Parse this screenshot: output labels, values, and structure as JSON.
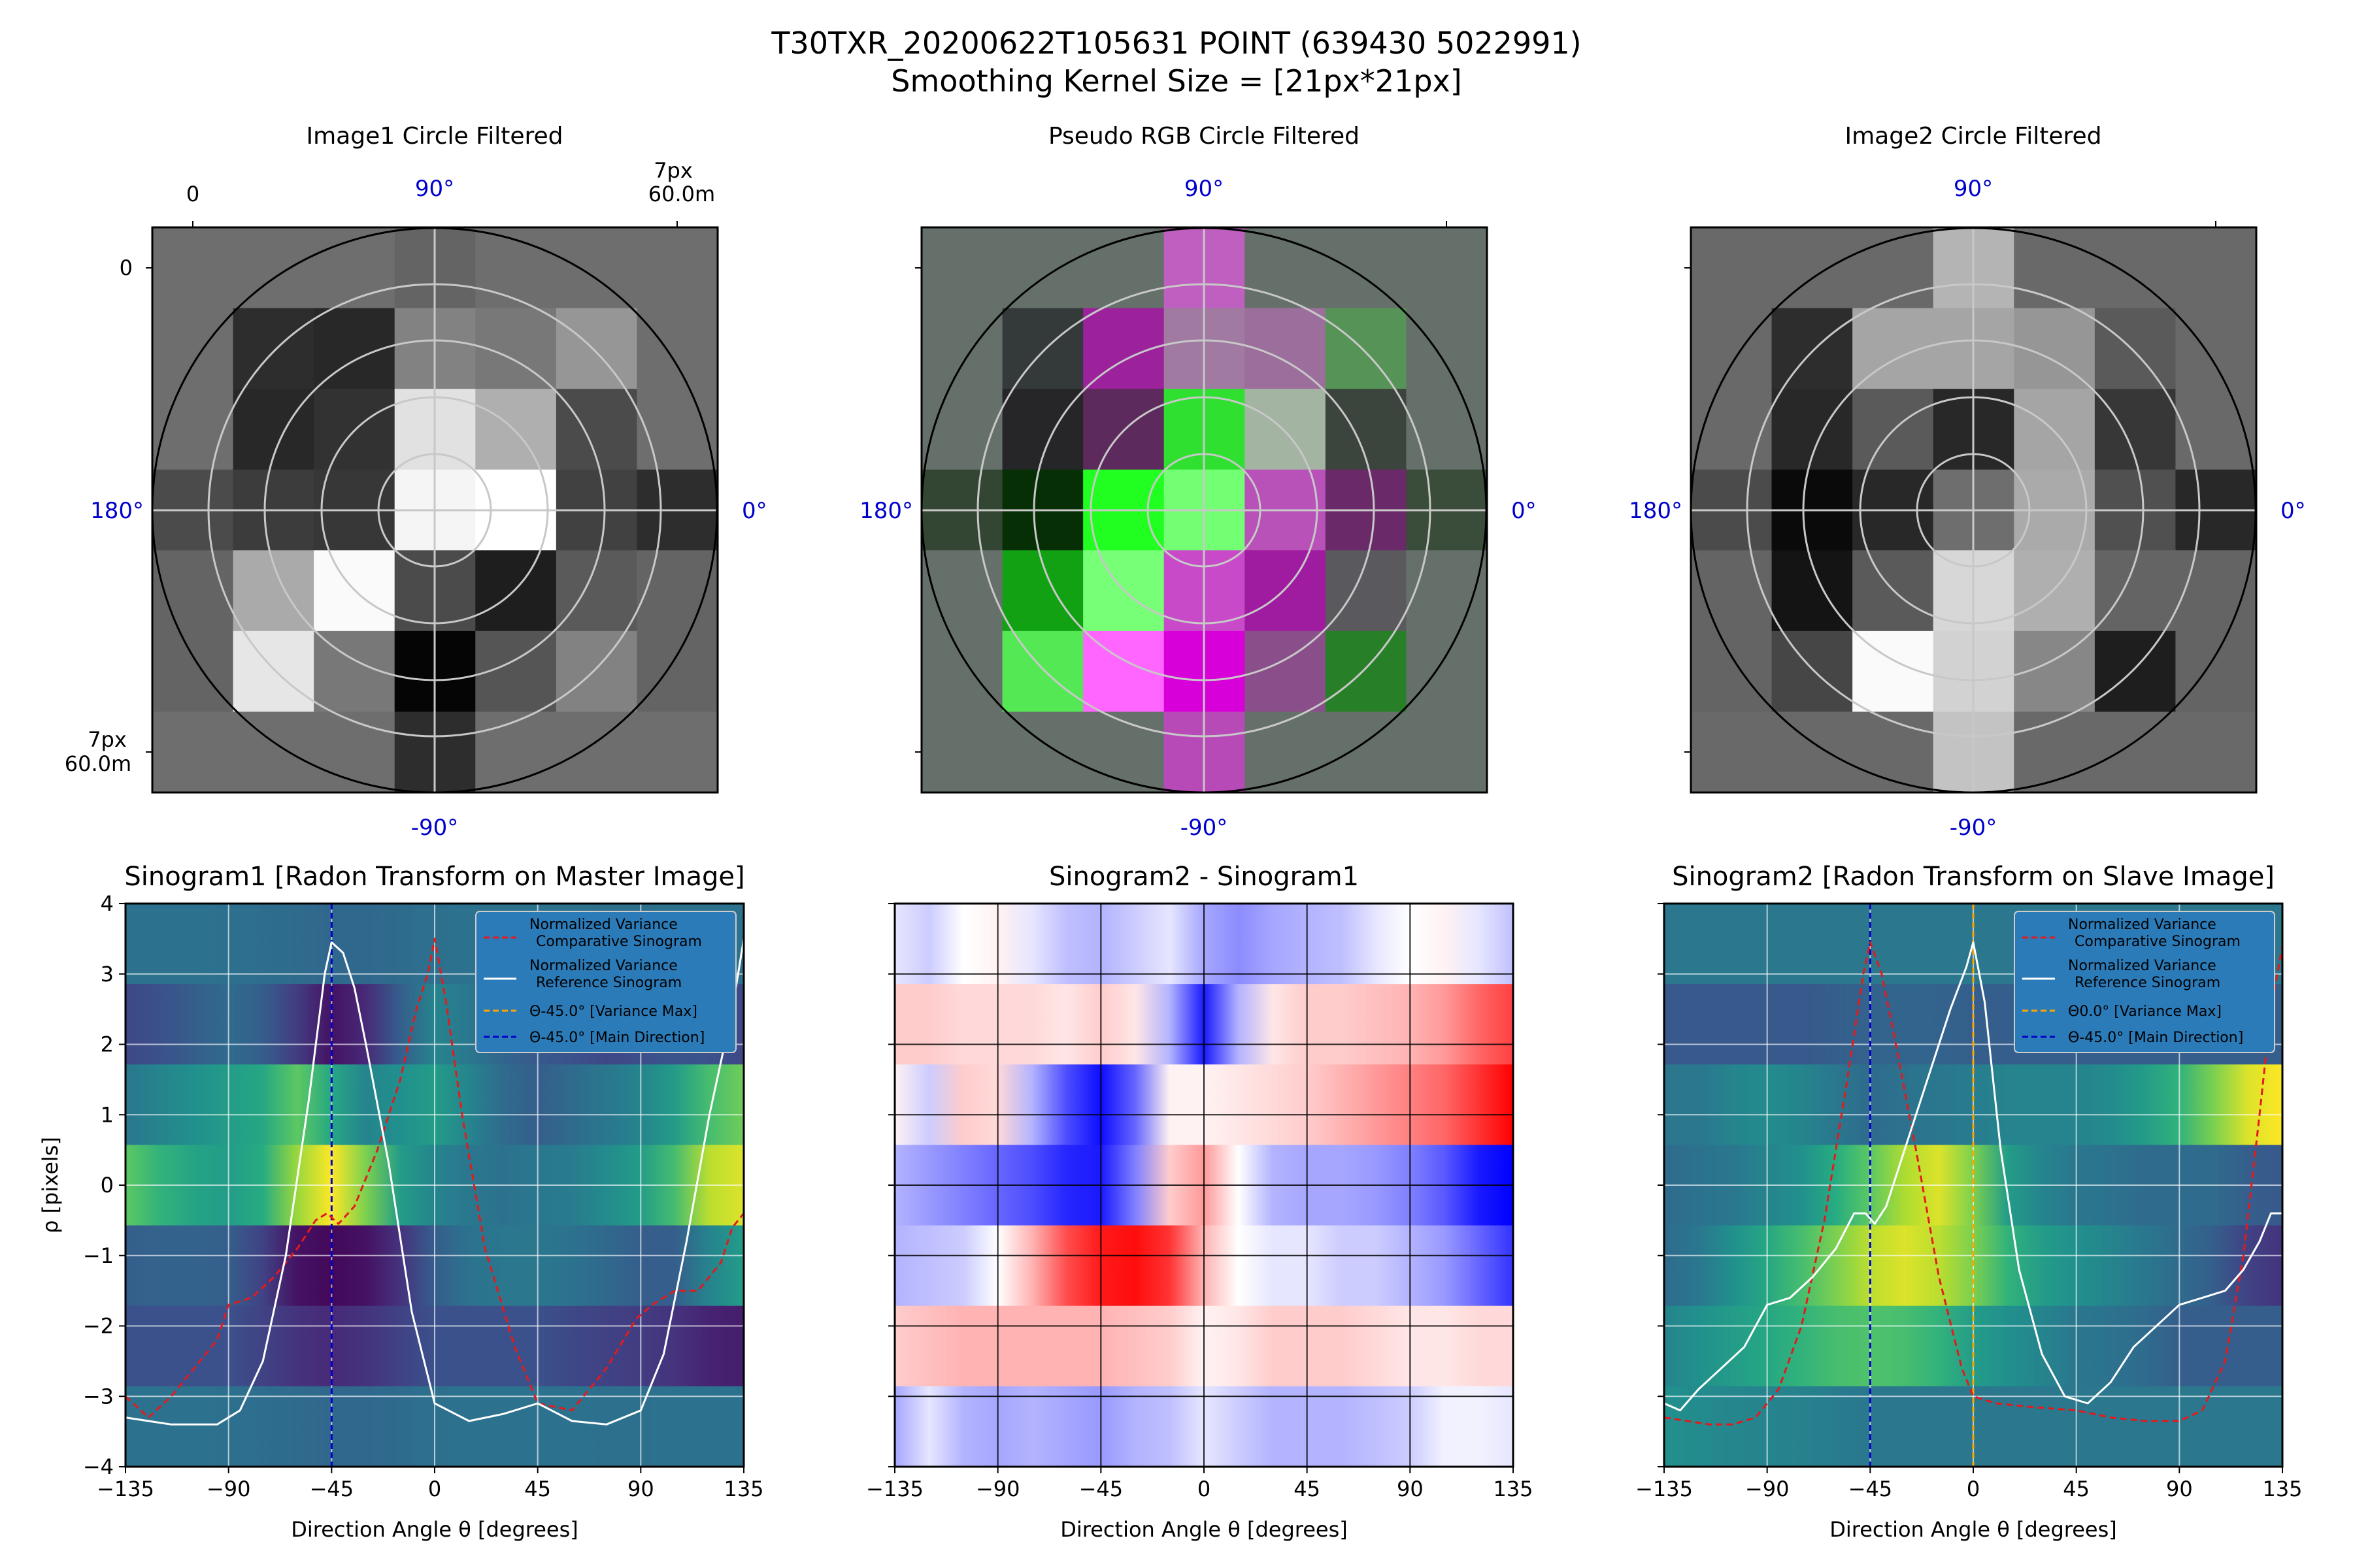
{
  "figure": {
    "title_line1": "T30TXR_20200622T105631 POINT (639430 5022991)",
    "title_line2": "Smoothing Kernel Size = [21px*21px]"
  },
  "colors": {
    "compare_curve": "#e41a1c",
    "reference_curve": "#ffffff",
    "variance_max_line": "#ffa500",
    "main_direction_line": "#0000cc",
    "legend_bg": "#2b7bb9",
    "angle_label": "#0000cc"
  },
  "polar": {
    "angle_labels": {
      "north": "90°",
      "west": "180°",
      "east": "0°",
      "south": "-90°"
    },
    "scale_top_left": "0",
    "scale_top_right_line1": "7px",
    "scale_top_right_line2": "60.0m",
    "scale_left_top": "0",
    "scale_left_bottom_line1": "7px",
    "scale_left_bottom_line2": "60.0m",
    "panels": [
      {
        "title": "Image1 Circle Filtered",
        "grid": [
          [
            110,
            110,
            110,
            100,
            110,
            110,
            110
          ],
          [
            110,
            45,
            40,
            130,
            120,
            150,
            110
          ],
          [
            110,
            40,
            50,
            225,
            175,
            75,
            110
          ],
          [
            75,
            60,
            55,
            245,
            255,
            65,
            45
          ],
          [
            100,
            170,
            250,
            75,
            30,
            90,
            100
          ],
          [
            100,
            230,
            120,
            5,
            85,
            130,
            100
          ],
          [
            110,
            110,
            110,
            45,
            110,
            110,
            110
          ]
        ]
      },
      {
        "title": "Pseudo RGB Circle Filtered",
        "grid": [
          [
            "#66706a",
            "#66706a",
            "#66706a",
            "#bf5fbf",
            "#66706a",
            "#66706a",
            "#66706a"
          ],
          [
            "#66706a",
            "#34393a",
            "#9b229b",
            "#a07aa0",
            "#9c6e9c",
            "#569356",
            "#66706a"
          ],
          [
            "#66706a",
            "#262629",
            "#5c2a5c",
            "#30e030",
            "#a3b4a3",
            "#3c443e",
            "#66706a"
          ],
          [
            "#334633",
            "#062f06",
            "#20ff20",
            "#73ff73",
            "#b852b8",
            "#6a2a6a",
            "#3a4d3a"
          ],
          [
            "#66706a",
            "#12a112",
            "#77ff77",
            "#c84ac8",
            "#9f1b9f",
            "#5a5a5e",
            "#66706a"
          ],
          [
            "#66706a",
            "#55e855",
            "#ff66ff",
            "#d800d8",
            "#8a4f8a",
            "#277f27",
            "#66706a"
          ],
          [
            "#66706a",
            "#66706a",
            "#66706a",
            "#b84ab8",
            "#66706a",
            "#66706a",
            "#66706a"
          ]
        ]
      },
      {
        "title": "Image2 Circle Filtered",
        "grid": [
          [
            105,
            105,
            105,
            180,
            105,
            105,
            105
          ],
          [
            105,
            45,
            165,
            165,
            150,
            90,
            105
          ],
          [
            105,
            40,
            90,
            40,
            165,
            55,
            105
          ],
          [
            75,
            10,
            40,
            110,
            170,
            80,
            40
          ],
          [
            100,
            20,
            90,
            215,
            175,
            100,
            100
          ],
          [
            100,
            70,
            250,
            210,
            135,
            30,
            100
          ],
          [
            105,
            105,
            105,
            195,
            105,
            105,
            105
          ]
        ]
      }
    ]
  },
  "sinograms": {
    "ylabel": "ρ [pixels]",
    "xlabel": "Direction Angle θ [degrees]",
    "x_ticks": [
      "−135",
      "−90",
      "−45",
      "0",
      "45",
      "90",
      "135"
    ],
    "y_ticks": [
      "4",
      "3",
      "2",
      "1",
      "0",
      "−1",
      "−2",
      "−3",
      "−4"
    ],
    "panels": [
      {
        "title": "Sinogram1 [Radon Transform on Master Image]"
      },
      {
        "title": "Sinogram2 - Sinogram1"
      },
      {
        "title": "Sinogram2 [Radon Transform on Slave Image]"
      }
    ],
    "legends": [
      {
        "compare_line1": "Normalized Variance",
        "compare_line2": "Comparative Sinogram",
        "reference_line1": "Normalized Variance",
        "reference_line2": "Reference Sinogram",
        "variance_max": "Θ-45.0° [Variance Max]",
        "main_direction": "Θ-45.0° [Main Direction]"
      },
      {
        "compare_line1": "Normalized Variance",
        "compare_line2": "Comparative Sinogram",
        "reference_line1": "Normalized Variance",
        "reference_line2": "Reference Sinogram",
        "variance_max": "Θ0.0° [Variance Max]",
        "main_direction": "Θ-45.0° [Main Direction]"
      }
    ]
  },
  "chart_data": [
    {
      "type": "heatmap",
      "title": "Sinogram1 [Radon Transform on Master Image]",
      "xlabel": "Direction Angle θ [degrees]",
      "ylabel": "ρ [pixels]",
      "xlim": [
        -135,
        135
      ],
      "ylim": [
        -4,
        4
      ],
      "colormap": "viridis",
      "rho_bands": [
        3.4,
        2.3,
        1.1,
        0.0,
        -1.1,
        -2.3,
        -3.4
      ],
      "theta_nodes": [
        -135,
        -120,
        -105,
        -90,
        -75,
        -60,
        -45,
        -30,
        -15,
        0,
        15,
        30,
        45,
        60,
        75,
        90,
        105,
        120,
        135
      ],
      "rows": [
        [
          0.38,
          0.38,
          0.38,
          0.37,
          0.36,
          0.35,
          0.34,
          0.34,
          0.35,
          0.37,
          0.38,
          0.38,
          0.38,
          0.38,
          0.37,
          0.37,
          0.38,
          0.38,
          0.38
        ],
        [
          0.22,
          0.25,
          0.3,
          0.35,
          0.3,
          0.18,
          0.05,
          0.12,
          0.3,
          0.45,
          0.4,
          0.33,
          0.28,
          0.25,
          0.22,
          0.24,
          0.26,
          0.25,
          0.22
        ],
        [
          0.4,
          0.45,
          0.5,
          0.55,
          0.6,
          0.75,
          0.6,
          0.45,
          0.5,
          0.55,
          0.45,
          0.35,
          0.3,
          0.35,
          0.4,
          0.45,
          0.55,
          0.7,
          0.78
        ],
        [
          0.75,
          0.65,
          0.58,
          0.55,
          0.62,
          0.85,
          1.0,
          0.8,
          0.55,
          0.45,
          0.4,
          0.38,
          0.4,
          0.42,
          0.48,
          0.55,
          0.7,
          0.9,
          0.95
        ],
        [
          0.3,
          0.32,
          0.32,
          0.3,
          0.2,
          0.05,
          0.02,
          0.05,
          0.15,
          0.3,
          0.38,
          0.4,
          0.4,
          0.38,
          0.34,
          0.3,
          0.3,
          0.45,
          0.55
        ],
        [
          0.25,
          0.25,
          0.25,
          0.25,
          0.2,
          0.15,
          0.12,
          0.15,
          0.2,
          0.25,
          0.25,
          0.25,
          0.25,
          0.22,
          0.2,
          0.18,
          0.15,
          0.1,
          0.08
        ],
        [
          0.38,
          0.38,
          0.38,
          0.37,
          0.36,
          0.35,
          0.34,
          0.34,
          0.35,
          0.37,
          0.38,
          0.38,
          0.38,
          0.38,
          0.37,
          0.37,
          0.38,
          0.38,
          0.38
        ]
      ],
      "series": [
        {
          "name": "Normalized Variance Comparative Sinogram",
          "style": "red-dashed",
          "x": [
            -135,
            -125,
            -115,
            -105,
            -95,
            -90,
            -80,
            -70,
            -60,
            -52,
            -47,
            -42,
            -35,
            -25,
            -15,
            -8,
            -3,
            0,
            5,
            12,
            22,
            35,
            45,
            60,
            75,
            88,
            95,
            105,
            115,
            125,
            130,
            135
          ],
          "y": [
            -3.0,
            -3.3,
            -3.0,
            -2.6,
            -2.2,
            -1.7,
            -1.6,
            -1.3,
            -0.9,
            -0.5,
            -0.4,
            -0.55,
            -0.3,
            0.5,
            1.5,
            2.5,
            3.0,
            3.5,
            2.6,
            1.0,
            -0.9,
            -2.3,
            -3.1,
            -3.2,
            -2.6,
            -1.9,
            -1.7,
            -1.5,
            -1.5,
            -1.1,
            -0.6,
            -0.4
          ]
        },
        {
          "name": "Normalized Variance Reference Sinogram",
          "style": "white-solid",
          "x": [
            -135,
            -125,
            -115,
            -105,
            -95,
            -85,
            -75,
            -65,
            -55,
            -48,
            -45,
            -40,
            -35,
            -30,
            -20,
            -10,
            0,
            15,
            30,
            45,
            60,
            75,
            90,
            100,
            110,
            120,
            130,
            135
          ],
          "y": [
            -3.3,
            -3.35,
            -3.4,
            -3.4,
            -3.4,
            -3.2,
            -2.5,
            -1.0,
            1.2,
            3.0,
            3.45,
            3.3,
            2.8,
            2.0,
            0.3,
            -1.8,
            -3.1,
            -3.35,
            -3.25,
            -3.1,
            -3.35,
            -3.4,
            -3.2,
            -2.4,
            -0.8,
            1.0,
            2.5,
            3.5
          ]
        }
      ],
      "vlines": [
        {
          "x": -45,
          "name": "Θ-45.0° [Main Direction]",
          "style": "blue-dashed"
        }
      ]
    },
    {
      "type": "heatmap",
      "title": "Sinogram2 - Sinogram1",
      "xlabel": "Direction Angle θ [degrees]",
      "xlim": [
        -135,
        135
      ],
      "ylim": [
        -4,
        4
      ],
      "colormap": "bwr",
      "rho_bands": [
        3.4,
        2.3,
        1.1,
        0.0,
        -1.1,
        -2.3,
        -3.4
      ],
      "theta_nodes": [
        -135,
        -120,
        -105,
        -90,
        -75,
        -60,
        -45,
        -30,
        -15,
        0,
        15,
        30,
        45,
        60,
        75,
        90,
        105,
        120,
        135
      ],
      "rows": [
        [
          -0.1,
          -0.2,
          0.0,
          0.05,
          -0.1,
          -0.25,
          -0.3,
          -0.2,
          -0.1,
          -0.35,
          -0.45,
          -0.35,
          -0.3,
          -0.25,
          -0.1,
          0.0,
          0.05,
          -0.1,
          -0.25
        ],
        [
          0.2,
          0.2,
          0.15,
          0.15,
          0.15,
          0.1,
          0.2,
          0.1,
          -0.3,
          -0.9,
          -0.3,
          0.1,
          0.2,
          0.2,
          0.25,
          0.3,
          0.4,
          0.6,
          0.75
        ],
        [
          0.05,
          -0.2,
          0.2,
          0.15,
          -0.3,
          -0.7,
          -0.95,
          -0.6,
          0.05,
          0.05,
          0.1,
          0.15,
          0.2,
          0.3,
          0.4,
          0.5,
          0.6,
          0.8,
          1.0
        ],
        [
          -0.3,
          -0.4,
          -0.5,
          -0.6,
          -0.7,
          -0.85,
          -0.9,
          -0.5,
          0.2,
          0.4,
          0.0,
          -0.3,
          -0.35,
          -0.35,
          -0.4,
          -0.5,
          -0.65,
          -0.9,
          -1.0
        ],
        [
          -0.3,
          -0.25,
          -0.2,
          0.0,
          0.3,
          0.7,
          0.9,
          0.95,
          0.8,
          0.3,
          0.0,
          -0.1,
          -0.1,
          -0.2,
          -0.2,
          -0.3,
          -0.4,
          -0.6,
          -0.8
        ],
        [
          0.2,
          0.25,
          0.3,
          0.3,
          0.3,
          0.3,
          0.3,
          0.25,
          0.2,
          0.05,
          0.1,
          0.2,
          0.2,
          0.2,
          0.15,
          0.1,
          0.1,
          0.15,
          0.15
        ],
        [
          -0.35,
          -0.1,
          -0.3,
          -0.35,
          -0.3,
          -0.35,
          -0.4,
          -0.3,
          -0.25,
          -0.1,
          -0.2,
          -0.3,
          -0.3,
          -0.3,
          -0.25,
          -0.2,
          -0.05,
          -0.05,
          -0.1
        ]
      ]
    },
    {
      "type": "heatmap",
      "title": "Sinogram2 [Radon Transform on Slave Image]",
      "xlabel": "Direction Angle θ [degrees]",
      "xlim": [
        -135,
        135
      ],
      "ylim": [
        -4,
        4
      ],
      "colormap": "viridis",
      "rho_bands": [
        3.4,
        2.3,
        1.1,
        0.0,
        -1.1,
        -2.3,
        -3.4
      ],
      "theta_nodes": [
        -135,
        -120,
        -105,
        -90,
        -75,
        -60,
        -45,
        -30,
        -15,
        0,
        15,
        30,
        45,
        60,
        75,
        90,
        105,
        120,
        135
      ],
      "rows": [
        [
          0.4,
          0.4,
          0.4,
          0.4,
          0.4,
          0.4,
          0.4,
          0.4,
          0.4,
          0.4,
          0.4,
          0.4,
          0.4,
          0.4,
          0.4,
          0.4,
          0.4,
          0.4,
          0.4
        ],
        [
          0.28,
          0.28,
          0.28,
          0.28,
          0.28,
          0.3,
          0.32,
          0.33,
          0.32,
          0.3,
          0.3,
          0.3,
          0.3,
          0.3,
          0.3,
          0.3,
          0.3,
          0.3,
          0.3
        ],
        [
          0.4,
          0.4,
          0.45,
          0.48,
          0.45,
          0.4,
          0.35,
          0.38,
          0.4,
          0.42,
          0.45,
          0.45,
          0.45,
          0.48,
          0.55,
          0.65,
          0.8,
          0.95,
          1.0
        ],
        [
          0.35,
          0.38,
          0.4,
          0.45,
          0.5,
          0.62,
          0.75,
          0.88,
          0.95,
          0.8,
          0.55,
          0.45,
          0.4,
          0.38,
          0.35,
          0.35,
          0.35,
          0.3,
          0.28
        ],
        [
          0.35,
          0.4,
          0.5,
          0.6,
          0.7,
          0.8,
          0.9,
          0.95,
          0.9,
          0.8,
          0.65,
          0.55,
          0.5,
          0.45,
          0.4,
          0.35,
          0.3,
          0.2,
          0.15
        ],
        [
          0.45,
          0.5,
          0.55,
          0.6,
          0.65,
          0.7,
          0.72,
          0.7,
          0.65,
          0.55,
          0.5,
          0.45,
          0.4,
          0.38,
          0.35,
          0.3,
          0.3,
          0.3,
          0.3
        ],
        [
          0.5,
          0.48,
          0.46,
          0.45,
          0.44,
          0.42,
          0.4,
          0.4,
          0.4,
          0.4,
          0.4,
          0.4,
          0.4,
          0.4,
          0.4,
          0.4,
          0.4,
          0.4,
          0.4
        ]
      ],
      "series": [
        {
          "name": "Normalized Variance Comparative Sinogram",
          "style": "red-dashed",
          "x": [
            -135,
            -125,
            -115,
            -105,
            -95,
            -85,
            -75,
            -65,
            -55,
            -48,
            -45,
            -40,
            -35,
            -25,
            -15,
            -5,
            0,
            10,
            25,
            45,
            60,
            75,
            90,
            100,
            110,
            118,
            125,
            130,
            135
          ],
          "y": [
            -3.3,
            -3.35,
            -3.4,
            -3.4,
            -3.3,
            -2.9,
            -2.0,
            -0.5,
            1.5,
            3.0,
            3.45,
            3.0,
            2.2,
            0.5,
            -1.3,
            -2.6,
            -3.0,
            -3.1,
            -3.15,
            -3.2,
            -3.3,
            -3.35,
            -3.35,
            -3.2,
            -2.5,
            -1.0,
            1.0,
            2.5,
            3.4
          ]
        },
        {
          "name": "Normalized Variance Reference Sinogram",
          "style": "white-solid",
          "x": [
            -135,
            -128,
            -120,
            -110,
            -100,
            -90,
            -80,
            -70,
            -60,
            -52,
            -47,
            -43,
            -38,
            -30,
            -20,
            -10,
            -3,
            0,
            5,
            12,
            20,
            30,
            40,
            50,
            60,
            70,
            80,
            90,
            100,
            110,
            118,
            125,
            130,
            135
          ],
          "y": [
            -3.1,
            -3.2,
            -2.9,
            -2.6,
            -2.3,
            -1.7,
            -1.6,
            -1.3,
            -0.9,
            -0.4,
            -0.4,
            -0.55,
            -0.3,
            0.5,
            1.5,
            2.5,
            3.1,
            3.45,
            2.6,
            0.5,
            -1.2,
            -2.4,
            -3.0,
            -3.1,
            -2.8,
            -2.3,
            -2.0,
            -1.7,
            -1.6,
            -1.5,
            -1.2,
            -0.8,
            -0.4,
            -0.4
          ]
        }
      ],
      "vlines": [
        {
          "x": -45,
          "name": "Θ-45.0° [Main Direction]",
          "style": "blue-dashed"
        },
        {
          "x": 0,
          "name": "Θ0.0° [Variance Max]",
          "style": "orange-dashed"
        }
      ]
    }
  ]
}
